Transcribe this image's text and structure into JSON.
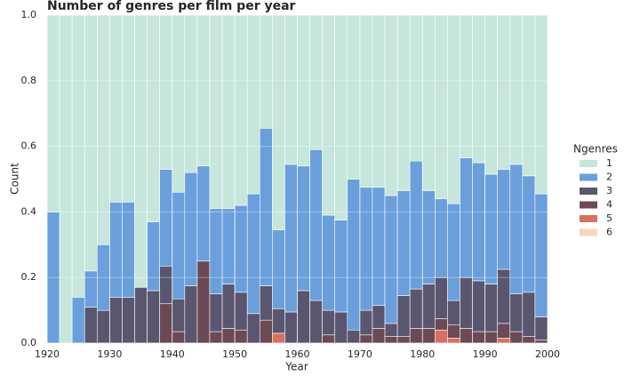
{
  "chart_data": {
    "type": "stacked-histogram",
    "title": "Number of genres per film per year",
    "x_label": "Year",
    "y_label": "Count",
    "legend_title": "Ngenres",
    "bins": [
      1920,
      1922,
      1924,
      1926,
      1928,
      1930,
      1932,
      1934,
      1936,
      1938,
      1940,
      1942,
      1944,
      1946,
      1948,
      1950,
      1952,
      1954,
      1956,
      1958,
      1960,
      1962,
      1964,
      1966,
      1968,
      1970,
      1972,
      1974,
      1976,
      1978,
      1980,
      1982,
      1984,
      1986,
      1988,
      1990,
      1992,
      1994,
      1996,
      1998,
      2000
    ],
    "series": [
      {
        "name": "1",
        "color": "#c6e6dc",
        "values": [
          0.6,
          1,
          0.86,
          0.78,
          0.7,
          0.57,
          0.57,
          0.83,
          0.63,
          0.47,
          0.54,
          0.48,
          0.46,
          0.59,
          0.59,
          0.58,
          0.545,
          0.345,
          0.655,
          0.455,
          0.46,
          0.41,
          0.61,
          0.625,
          0.5,
          0.525,
          0.525,
          0.55,
          0.535,
          0.445,
          0.535,
          0.56,
          0.575,
          0.435,
          0.45,
          0.485,
          0.47,
          0.455,
          0.49,
          0.545
        ]
      },
      {
        "name": "2",
        "color": "#6a9fdc",
        "values": [
          0.4,
          0,
          0.14,
          0.11,
          0.2,
          0.29,
          0.29,
          0,
          0.21,
          0.295,
          0.325,
          0.345,
          0.29,
          0.26,
          0.23,
          0.265,
          0.365,
          0.48,
          0.24,
          0.45,
          0.38,
          0.46,
          0.29,
          0.28,
          0.46,
          0.375,
          0.36,
          0.39,
          0.32,
          0.39,
          0.285,
          0.24,
          0.295,
          0.365,
          0.36,
          0.335,
          0.305,
          0.395,
          0.355,
          0.375
        ]
      },
      {
        "name": "3",
        "color": "#5a566f",
        "values": [
          0,
          0,
          0,
          0.11,
          0.1,
          0.14,
          0.14,
          0.17,
          0.16,
          0.115,
          0.1,
          0.175,
          0,
          0.115,
          0.135,
          0.115,
          0.09,
          0.105,
          0.075,
          0.095,
          0.16,
          0.13,
          0.075,
          0.095,
          0.04,
          0.075,
          0.07,
          0.04,
          0.125,
          0.12,
          0.135,
          0.125,
          0.075,
          0.155,
          0.155,
          0.145,
          0.165,
          0.115,
          0.135,
          0.07
        ]
      },
      {
        "name": "4",
        "color": "#6c4a55",
        "values": [
          0,
          0,
          0,
          0,
          0,
          0,
          0,
          0,
          0,
          0.12,
          0.035,
          0,
          0.25,
          0.035,
          0.045,
          0.04,
          0,
          0.07,
          0,
          0,
          0,
          0,
          0.025,
          0,
          0,
          0.025,
          0.045,
          0.02,
          0.02,
          0.045,
          0.045,
          0.035,
          0.04,
          0.045,
          0.035,
          0.035,
          0.045,
          0.035,
          0.02,
          0.01
        ]
      },
      {
        "name": "5",
        "color": "#d8705f",
        "values": [
          0,
          0,
          0,
          0,
          0,
          0,
          0,
          0,
          0,
          0,
          0,
          0,
          0,
          0,
          0,
          0,
          0,
          0,
          0.03,
          0,
          0,
          0,
          0,
          0,
          0,
          0,
          0,
          0,
          0,
          0,
          0,
          0.04,
          0.015,
          0,
          0,
          0,
          0.015,
          0,
          0,
          0
        ]
      },
      {
        "name": "6",
        "color": "#f8d7bd",
        "values": [
          0,
          0,
          0,
          0,
          0,
          0,
          0,
          0,
          0,
          0,
          0,
          0,
          0,
          0,
          0,
          0,
          0,
          0,
          0,
          0,
          0,
          0,
          0,
          0,
          0,
          0,
          0,
          0,
          0,
          0,
          0,
          0,
          0,
          0,
          0,
          0,
          0,
          0,
          0,
          0
        ]
      }
    ],
    "xlim": [
      1920,
      2000
    ],
    "xticks": [
      1920,
      1930,
      1940,
      1950,
      1960,
      1970,
      1980,
      1990,
      2000
    ],
    "ylim": [
      0,
      1
    ],
    "yticks": [
      {
        "value": 0,
        "label": "0.0"
      },
      0.2,
      0.4,
      0.6,
      0.8,
      {
        "value": 1,
        "label": "1.0"
      }
    ],
    "grid": true,
    "legend": "right"
  }
}
